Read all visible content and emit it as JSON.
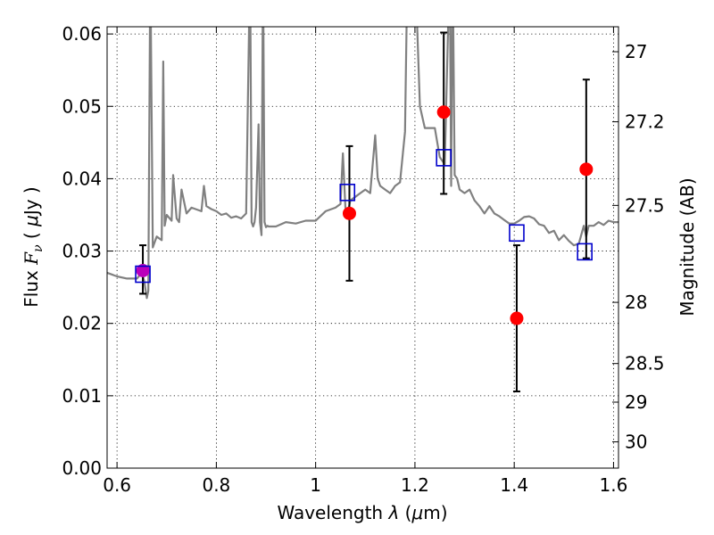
{
  "chart_data": {
    "type": "scatter",
    "title": "",
    "xlabel": "Wavelength  λ (μm)",
    "ylabel": "Flux  F_ν  ( μJy )",
    "ylabel_parts": {
      "lead": "Flux ",
      "italic": "F",
      "sub": "ν",
      "open": "  ( ",
      "mu": "μ",
      "unit": "Jy )"
    },
    "xlabel_parts": {
      "lead": "Wavelength  ",
      "lambda": "λ",
      "open": " (",
      "mu": "μ",
      "unit": "m)"
    },
    "ylabel_right": "Magnitude (AB)",
    "xlim": [
      0.58,
      1.61
    ],
    "ylim": [
      0.0,
      0.061
    ],
    "grid": true,
    "x_ticks": [
      0.6,
      0.8,
      1.0,
      1.2,
      1.4,
      1.6
    ],
    "x_tick_labels": [
      "0.6",
      "0.8",
      "1",
      "1.2",
      "1.4",
      "1.6"
    ],
    "y_ticks": [
      0.0,
      0.01,
      0.02,
      0.03,
      0.04,
      0.05,
      0.06
    ],
    "y_tick_labels": [
      "0.00",
      "0.01",
      "0.02",
      "0.03",
      "0.04",
      "0.05",
      "0.06"
    ],
    "right_ticks": [
      {
        "mag": 27,
        "label": "27"
      },
      {
        "mag": 27.2,
        "label": "27.2"
      },
      {
        "mag": 27.5,
        "label": "27.5"
      },
      {
        "mag": 28,
        "label": "28"
      },
      {
        "mag": 28.5,
        "label": "28.5"
      },
      {
        "mag": 29,
        "label": "29"
      },
      {
        "mag": 30,
        "label": "30"
      }
    ],
    "colors": {
      "sed": "#808080",
      "observed": "#ff0000",
      "model": "#0000cc",
      "errorbar": "#000000",
      "overlap": "#bb00bb"
    },
    "series": [
      {
        "name": "SED model spectrum",
        "kind": "line",
        "x": [
          0.58,
          0.6,
          0.62,
          0.64,
          0.65,
          0.655,
          0.66,
          0.663,
          0.667,
          0.672,
          0.68,
          0.69,
          0.693,
          0.696,
          0.7,
          0.71,
          0.713,
          0.72,
          0.725,
          0.73,
          0.74,
          0.75,
          0.77,
          0.775,
          0.78,
          0.79,
          0.8,
          0.81,
          0.82,
          0.83,
          0.84,
          0.85,
          0.86,
          0.868,
          0.871,
          0.874,
          0.877,
          0.88,
          0.885,
          0.888,
          0.891,
          0.894,
          0.897,
          0.9,
          0.903,
          0.905,
          0.92,
          0.94,
          0.96,
          0.98,
          1.0,
          1.02,
          1.04,
          1.05,
          1.055,
          1.06,
          1.065,
          1.07,
          1.08,
          1.09,
          1.1,
          1.11,
          1.12,
          1.125,
          1.13,
          1.14,
          1.15,
          1.16,
          1.17,
          1.18,
          1.185,
          1.2,
          1.21,
          1.22,
          1.23,
          1.24,
          1.25,
          1.26,
          1.27,
          1.273,
          1.276,
          1.28,
          1.285,
          1.29,
          1.3,
          1.31,
          1.32,
          1.33,
          1.34,
          1.35,
          1.36,
          1.37,
          1.38,
          1.39,
          1.4,
          1.41,
          1.42,
          1.43,
          1.44,
          1.45,
          1.46,
          1.47,
          1.48,
          1.49,
          1.5,
          1.51,
          1.52,
          1.53,
          1.54,
          1.545,
          1.55,
          1.56,
          1.57,
          1.58,
          1.59,
          1.6,
          1.61
        ],
        "y": [
          0.027,
          0.0265,
          0.0262,
          0.0262,
          0.027,
          0.0258,
          0.0235,
          0.0245,
          0.07,
          0.0305,
          0.032,
          0.0315,
          0.0562,
          0.0335,
          0.035,
          0.0342,
          0.0405,
          0.0345,
          0.034,
          0.0385,
          0.0352,
          0.036,
          0.0355,
          0.039,
          0.0362,
          0.0358,
          0.0355,
          0.035,
          0.0352,
          0.0346,
          0.0348,
          0.0345,
          0.0352,
          0.07,
          0.034,
          0.0334,
          0.034,
          0.036,
          0.0475,
          0.034,
          0.0322,
          0.07,
          0.034,
          0.0333,
          0.0335,
          0.0334,
          0.0334,
          0.034,
          0.0338,
          0.0342,
          0.0342,
          0.0355,
          0.036,
          0.0365,
          0.0435,
          0.036,
          0.0355,
          0.037,
          0.0375,
          0.038,
          0.0385,
          0.038,
          0.046,
          0.04,
          0.039,
          0.0385,
          0.038,
          0.039,
          0.0395,
          0.0465,
          0.07,
          0.07,
          0.05,
          0.047,
          0.047,
          0.047,
          0.043,
          0.042,
          0.07,
          0.039,
          0.07,
          0.0405,
          0.04,
          0.0385,
          0.038,
          0.0385,
          0.037,
          0.0362,
          0.0352,
          0.0362,
          0.0352,
          0.0348,
          0.0343,
          0.0338,
          0.0338,
          0.0342,
          0.0347,
          0.0348,
          0.0345,
          0.0337,
          0.0335,
          0.0325,
          0.0328,
          0.0315,
          0.0322,
          0.0314,
          0.0308,
          0.031,
          0.0335,
          0.032,
          0.0335,
          0.0335,
          0.034,
          0.0336,
          0.0342,
          0.034,
          0.034
        ]
      },
      {
        "name": "Observed photometry",
        "kind": "points-with-errorbars",
        "x": [
          0.652,
          1.068,
          1.258,
          1.405,
          1.545
        ],
        "y": [
          0.0273,
          0.0352,
          0.0492,
          0.0207,
          0.0413
        ],
        "err_low": [
          0.0032,
          0.0093,
          0.0113,
          0.0101,
          0.0123
        ],
        "err_high": [
          0.0035,
          0.0093,
          0.011,
          0.0101,
          0.0124
        ]
      },
      {
        "name": "Model photometry",
        "kind": "points",
        "x": [
          0.652,
          1.064,
          1.258,
          1.405,
          1.542
        ],
        "y": [
          0.0268,
          0.0381,
          0.0429,
          0.0325,
          0.0299
        ]
      }
    ]
  }
}
